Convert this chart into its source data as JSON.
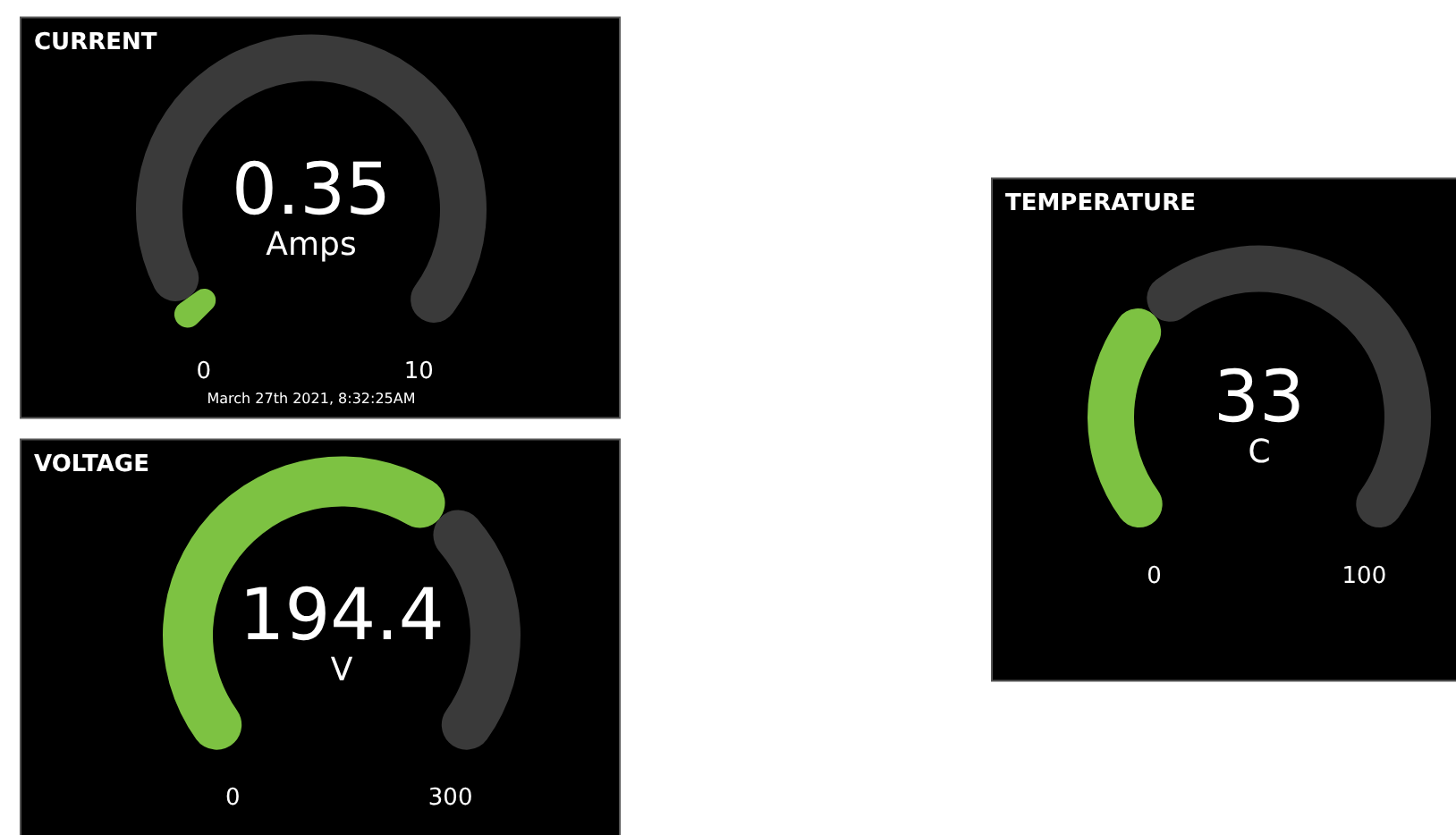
{
  "chart_data": [
    {
      "type": "donut",
      "title": "CURRENT",
      "categories": [
        null,
        null
      ],
      "values": [
        3.5,
        96.5
      ],
      "colors": [
        "#7dc242",
        "#3a3a3a"
      ],
      "annotations": [
        "0.35",
        "Amps",
        "0",
        "10",
        "March 27th 2021, 8:32:25AM"
      ]
    },
    {
      "type": "donut",
      "title": "VOLTAGE",
      "categories": [
        null,
        null
      ],
      "values": [
        64.8,
        35.2
      ],
      "colors": [
        "#7dc242",
        "#3a3a3a"
      ],
      "annotations": [
        "194.4",
        "V",
        "0",
        "300"
      ]
    },
    {
      "type": "donut",
      "title": "TEMPERATURE",
      "categories": [
        null,
        null
      ],
      "values": [
        33,
        67
      ],
      "colors": [
        "#7dc242",
        "#3a3a3a"
      ],
      "annotations": [
        "33",
        "C",
        "0",
        "100"
      ]
    }
  ]
}
